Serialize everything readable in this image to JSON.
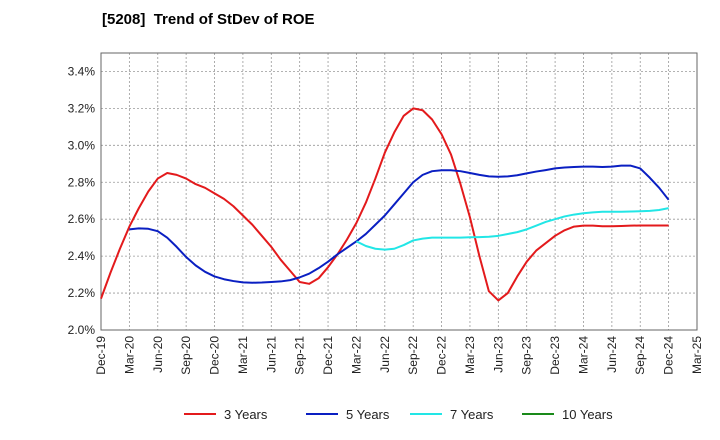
{
  "chart_data": {
    "type": "line",
    "title": "[5208]  Trend of StDev of ROE",
    "xlabel": "",
    "ylabel": "",
    "x_ticks": [
      "Dec-19",
      "Mar-20",
      "Jun-20",
      "Sep-20",
      "Dec-20",
      "Mar-21",
      "Jun-21",
      "Sep-21",
      "Dec-21",
      "Mar-22",
      "Jun-22",
      "Sep-22",
      "Dec-22",
      "Mar-23",
      "Jun-23",
      "Sep-23",
      "Dec-23",
      "Mar-24",
      "Jun-24",
      "Sep-24",
      "Dec-24",
      "Mar-25"
    ],
    "y_ticks": [
      "2.0%",
      "2.2%",
      "2.4%",
      "2.6%",
      "2.8%",
      "3.0%",
      "3.2%",
      "3.4%"
    ],
    "ylim": [
      2.0,
      3.5
    ],
    "y_unit": "%",
    "grid": true,
    "legend_position": "bottom",
    "series": [
      {
        "name": "3 Years",
        "color": "#e31a1c",
        "x": [
          "2019-12",
          "2020-01",
          "2020-02",
          "2020-03",
          "2020-04",
          "2020-05",
          "2020-06",
          "2020-07",
          "2020-08",
          "2020-09",
          "2020-10",
          "2020-11",
          "2020-12",
          "2021-01",
          "2021-02",
          "2021-03",
          "2021-04",
          "2021-05",
          "2021-06",
          "2021-07",
          "2021-08",
          "2021-09",
          "2021-10",
          "2021-11",
          "2021-12",
          "2022-01",
          "2022-02",
          "2022-03",
          "2022-04",
          "2022-05",
          "2022-06",
          "2022-07",
          "2022-08",
          "2022-09",
          "2022-10",
          "2022-11",
          "2022-12",
          "2023-01",
          "2023-02",
          "2023-03",
          "2023-04",
          "2023-05",
          "2023-06",
          "2023-07",
          "2023-08",
          "2023-09",
          "2023-10",
          "2023-11",
          "2023-12",
          "2024-01",
          "2024-02",
          "2024-03",
          "2024-04",
          "2024-05",
          "2024-06",
          "2024-07",
          "2024-08",
          "2024-09",
          "2024-10",
          "2024-11",
          "2024-12"
        ],
        "values": [
          2.17,
          2.31,
          2.44,
          2.56,
          2.66,
          2.75,
          2.82,
          2.85,
          2.84,
          2.82,
          2.79,
          2.77,
          2.74,
          2.71,
          2.67,
          2.62,
          2.57,
          2.51,
          2.45,
          2.38,
          2.32,
          2.26,
          2.25,
          2.28,
          2.34,
          2.41,
          2.49,
          2.58,
          2.69,
          2.82,
          2.96,
          3.07,
          3.16,
          3.2,
          3.19,
          3.14,
          3.06,
          2.95,
          2.79,
          2.61,
          2.4,
          2.21,
          2.16,
          2.2,
          2.29,
          2.37,
          2.43,
          2.47,
          2.51,
          2.54,
          2.56,
          2.565,
          2.565,
          2.562,
          2.562,
          2.563,
          2.565,
          2.566,
          2.566,
          2.566,
          2.566
        ]
      },
      {
        "name": "5 Years",
        "color": "#0a1fc2",
        "x": [
          "2020-03",
          "2020-04",
          "2020-05",
          "2020-06",
          "2020-07",
          "2020-08",
          "2020-09",
          "2020-10",
          "2020-11",
          "2020-12",
          "2021-01",
          "2021-02",
          "2021-03",
          "2021-04",
          "2021-05",
          "2021-06",
          "2021-07",
          "2021-08",
          "2021-09",
          "2021-10",
          "2021-11",
          "2021-12",
          "2022-01",
          "2022-02",
          "2022-03",
          "2022-04",
          "2022-05",
          "2022-06",
          "2022-07",
          "2022-08",
          "2022-09",
          "2022-10",
          "2022-11",
          "2022-12",
          "2023-01",
          "2023-02",
          "2023-03",
          "2023-04",
          "2023-05",
          "2023-06",
          "2023-07",
          "2023-08",
          "2023-09",
          "2023-10",
          "2023-11",
          "2023-12",
          "2024-01",
          "2024-02",
          "2024-03",
          "2024-04",
          "2024-05",
          "2024-06",
          "2024-07",
          "2024-08",
          "2024-09",
          "2024-10",
          "2024-11",
          "2024-12"
        ],
        "values": [
          2.545,
          2.55,
          2.548,
          2.535,
          2.5,
          2.45,
          2.395,
          2.35,
          2.315,
          2.29,
          2.275,
          2.265,
          2.258,
          2.256,
          2.257,
          2.26,
          2.263,
          2.27,
          2.285,
          2.305,
          2.335,
          2.37,
          2.41,
          2.445,
          2.48,
          2.52,
          2.57,
          2.62,
          2.68,
          2.74,
          2.8,
          2.84,
          2.86,
          2.865,
          2.865,
          2.86,
          2.85,
          2.84,
          2.832,
          2.83,
          2.832,
          2.838,
          2.848,
          2.858,
          2.866,
          2.875,
          2.88,
          2.883,
          2.885,
          2.885,
          2.883,
          2.885,
          2.89,
          2.89,
          2.875,
          2.825,
          2.77,
          2.705
        ]
      },
      {
        "name": "7 Years",
        "color": "#22e6e6",
        "x": [
          "2022-03",
          "2022-04",
          "2022-05",
          "2022-06",
          "2022-07",
          "2022-08",
          "2022-09",
          "2022-10",
          "2022-11",
          "2022-12",
          "2023-01",
          "2023-02",
          "2023-03",
          "2023-04",
          "2023-05",
          "2023-06",
          "2023-07",
          "2023-08",
          "2023-09",
          "2023-10",
          "2023-11",
          "2023-12",
          "2024-01",
          "2024-02",
          "2024-03",
          "2024-04",
          "2024-05",
          "2024-06",
          "2024-07",
          "2024-08",
          "2024-09",
          "2024-10",
          "2024-11",
          "2024-12"
        ],
        "values": [
          2.48,
          2.455,
          2.44,
          2.435,
          2.44,
          2.46,
          2.485,
          2.495,
          2.5,
          2.5,
          2.5,
          2.5,
          2.502,
          2.503,
          2.505,
          2.51,
          2.52,
          2.53,
          2.545,
          2.565,
          2.585,
          2.6,
          2.615,
          2.625,
          2.632,
          2.637,
          2.64,
          2.64,
          2.64,
          2.642,
          2.643,
          2.645,
          2.65,
          2.66
        ]
      },
      {
        "name": "10 Years",
        "color": "#1a8a1a",
        "x": [],
        "values": []
      }
    ]
  }
}
